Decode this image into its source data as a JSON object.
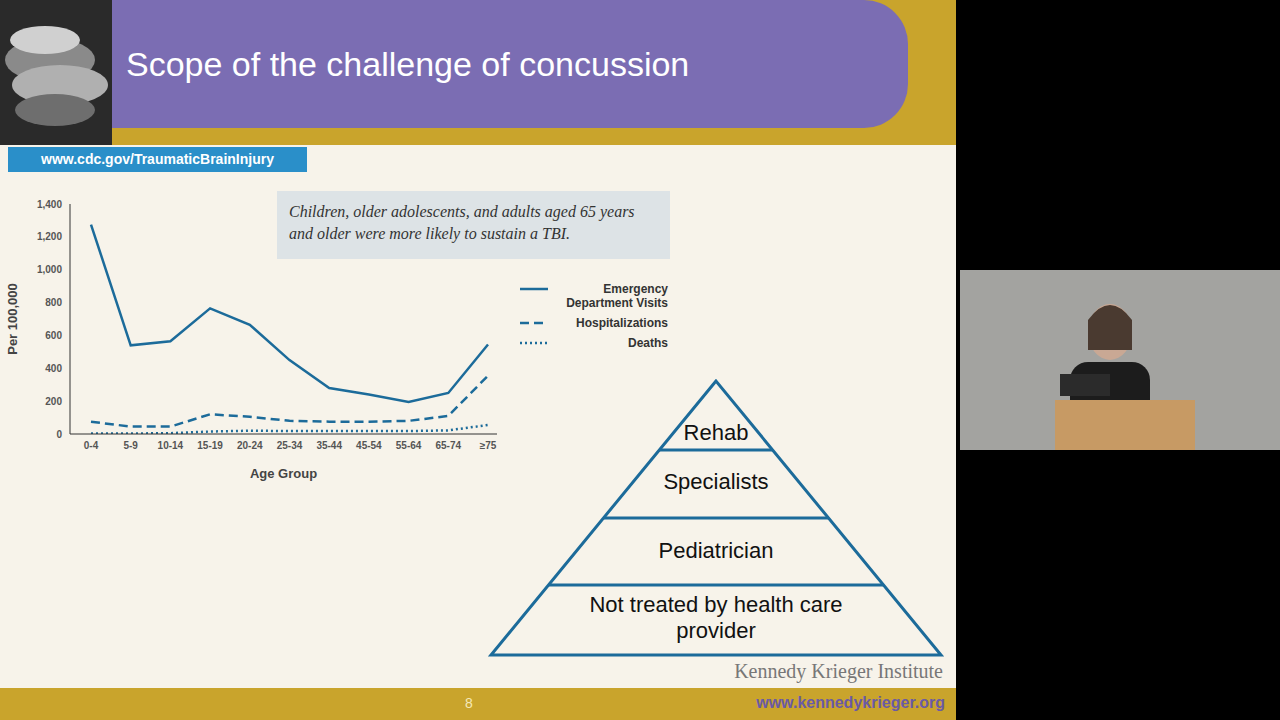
{
  "slide": {
    "title": "Scope of the challenge of concussion",
    "source": "www.cdc.gov/TraumaticBrainInjury",
    "page_number": 8,
    "institute": "Kennedy Krieger Institute",
    "url": "www.kennedykrieger.org"
  },
  "chart_data": {
    "type": "line",
    "annotation": "Children, older adolescents, and adults aged 65 years and older were more likely to sustain a TBI.",
    "x_label": "Age Group",
    "y_label": "Per 100,000",
    "categories": [
      "0-4",
      "5-9",
      "10-14",
      "15-19",
      "20-24",
      "25-34",
      "35-44",
      "45-54",
      "55-64",
      "65-74",
      "≥75"
    ],
    "series": [
      {
        "name": "Emergency Department Visits",
        "color": "#1c6b9a",
        "line_style": "solid",
        "values": [
          1275,
          540,
          565,
          765,
          665,
          450,
          280,
          240,
          195,
          250,
          545
        ]
      },
      {
        "name": "Hospitalizations",
        "color": "#1c6b9a",
        "line_style": "dashed",
        "values": [
          75,
          45,
          45,
          120,
          105,
          80,
          75,
          75,
          80,
          110,
          355
        ]
      },
      {
        "name": "Deaths",
        "color": "#1c6b9a",
        "line_style": "dotted",
        "values": [
          3,
          3,
          5,
          15,
          20,
          18,
          18,
          18,
          18,
          22,
          55
        ]
      }
    ],
    "ylim": [
      0,
      1400
    ],
    "yticks": [
      0,
      200,
      400,
      600,
      800,
      {
        "value": 1000,
        "label": "1,000"
      },
      {
        "value": 1200,
        "label": "1,200"
      },
      {
        "value": 1400,
        "label": "1,400"
      }
    ],
    "legend": "right",
    "grid": false
  },
  "pyramid": {
    "levels": [
      "Rehab",
      "Specialists",
      "Pediatrician",
      "Not treated by health care provider"
    ]
  }
}
